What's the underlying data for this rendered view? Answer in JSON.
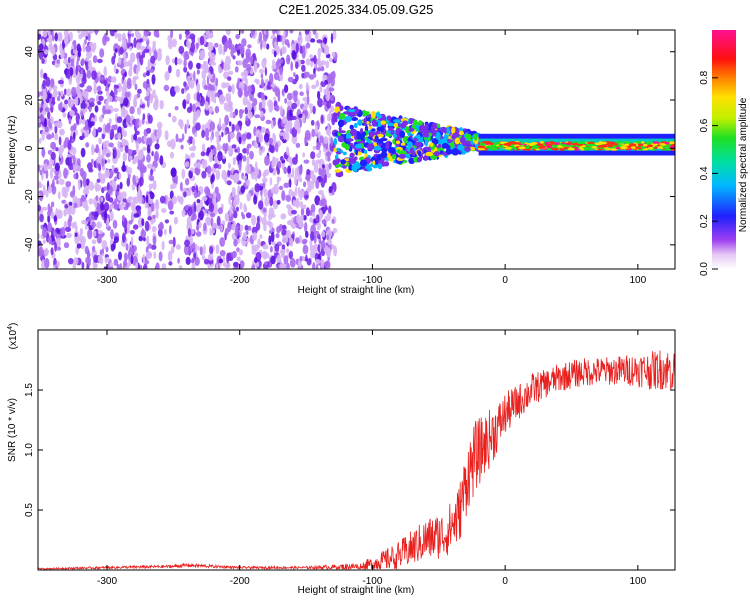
{
  "chart_data": [
    {
      "type": "heatmap",
      "title": "C2E1.2025.334.05.09.G25",
      "xlabel": "Height of straight line (km)",
      "ylabel": "Frequency (Hz)",
      "xlim": [
        -352,
        128
      ],
      "ylim": [
        -50,
        49
      ],
      "xticks": [
        -300,
        -200,
        -100,
        0,
        100
      ],
      "yticks": [
        -40,
        -20,
        0,
        20,
        40
      ],
      "colorbar": {
        "label": "Normalized spectral amplitude",
        "range": [
          0.0,
          1.0
        ],
        "ticks": [
          0.0,
          0.2,
          0.4,
          0.6,
          0.8
        ]
      },
      "regions": [
        {
          "description": "noise",
          "x_range": [
            -352,
            -128
          ],
          "freq_range": [
            -50,
            49
          ],
          "amplitude_approx": 0.05
        },
        {
          "description": "signal-onset",
          "x_range": [
            -128,
            -20
          ],
          "freq_range": [
            -18,
            14
          ],
          "amplitude_approx": 0.3
        },
        {
          "description": "carrier",
          "x_range": [
            -20,
            128
          ],
          "freq_range": [
            -1,
            3
          ],
          "amplitude_approx": 0.9
        }
      ]
    },
    {
      "type": "line",
      "xlabel": "Height of straight line (km)",
      "ylabel": "SNR (10 * v/v)",
      "yscale_label": "(x10",
      "yscale_exp": "4",
      "xlim": [
        -352,
        128
      ],
      "ylim": [
        0,
        2.0
      ],
      "xticks": [
        -300,
        -200,
        -100,
        0,
        100
      ],
      "yticks": [
        0.5,
        1.0,
        1.5
      ],
      "ytick_labels": [
        "0.5",
        "1.0",
        "1.5"
      ],
      "series": [
        {
          "name": "SNR",
          "color": "#e8201e",
          "x": [
            -352,
            -300,
            -250,
            -240,
            -200,
            -150,
            -110,
            -100,
            -80,
            -60,
            -45,
            -35,
            -28,
            -22,
            -15,
            -10,
            -5,
            0,
            10,
            20,
            30,
            40,
            50,
            60,
            80,
            100,
            110,
            120,
            128
          ],
          "y": [
            0.01,
            0.02,
            0.03,
            0.04,
            0.02,
            0.02,
            0.03,
            0.05,
            0.12,
            0.25,
            0.3,
            0.45,
            0.8,
            0.95,
            1.05,
            1.12,
            1.2,
            1.3,
            1.4,
            1.5,
            1.55,
            1.6,
            1.63,
            1.65,
            1.66,
            1.67,
            1.66,
            1.68,
            1.65
          ],
          "noise": [
            0.005,
            0.01,
            0.012,
            0.015,
            0.01,
            0.01,
            0.03,
            0.06,
            0.12,
            0.18,
            0.2,
            0.25,
            0.3,
            0.3,
            0.25,
            0.25,
            0.2,
            0.18,
            0.15,
            0.14,
            0.12,
            0.12,
            0.12,
            0.12,
            0.12,
            0.14,
            0.16,
            0.18,
            0.18
          ]
        }
      ]
    }
  ]
}
